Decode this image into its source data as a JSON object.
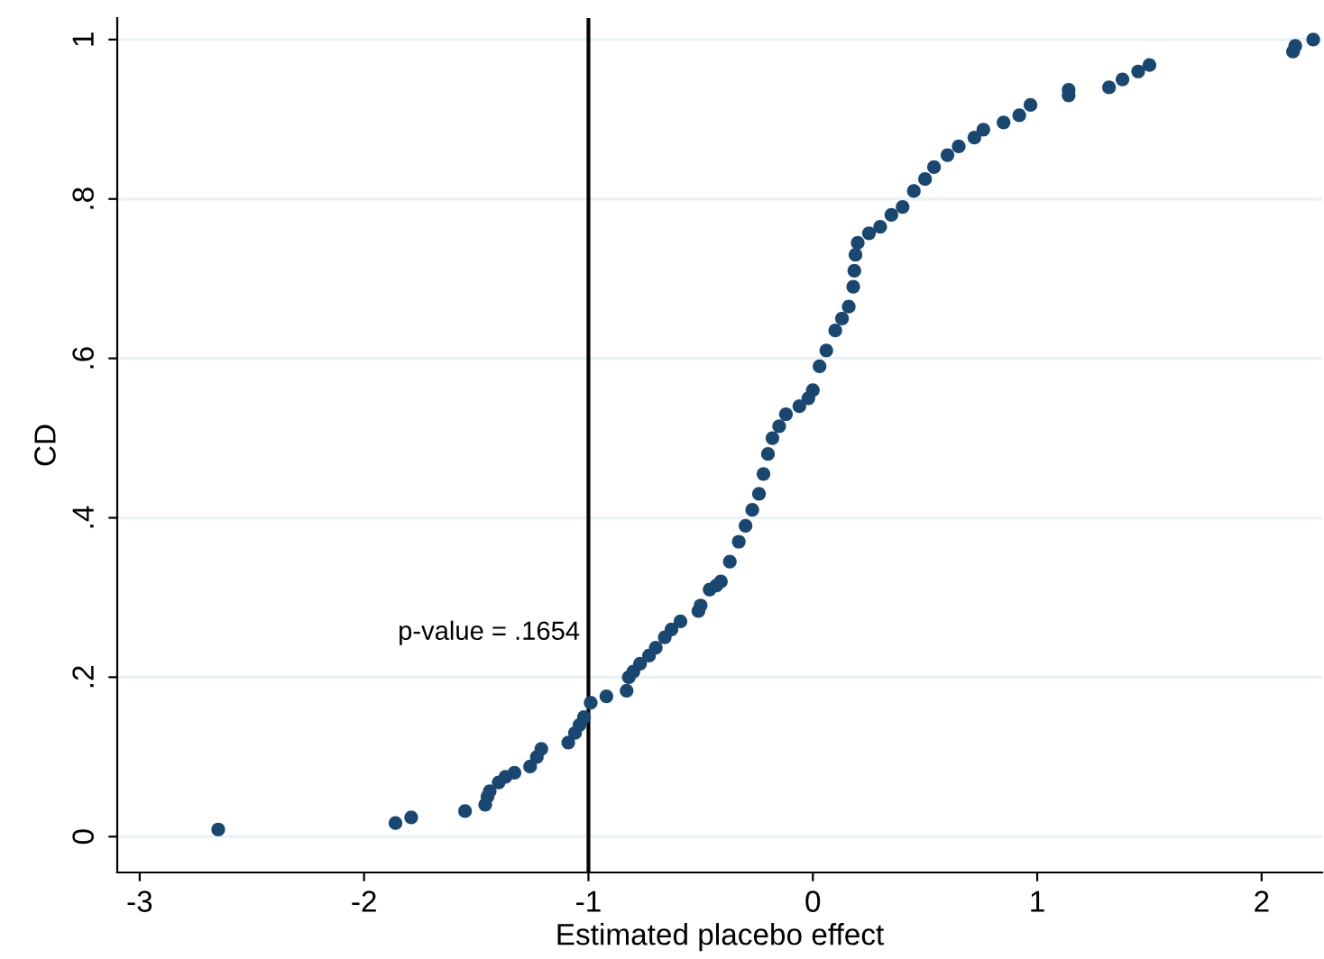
{
  "chart_data": {
    "type": "scatter",
    "xlabel": "Estimated placebo effect",
    "ylabel": "CD",
    "xlim": [
      -3.1,
      2.27
    ],
    "ylim": [
      -0.045,
      1.027
    ],
    "xticks": [
      -3,
      -2,
      -1,
      0,
      1,
      2
    ],
    "yticks": [
      {
        "value": 0,
        "label": "0"
      },
      {
        "value": 0.2,
        "label": ".2"
      },
      {
        "value": 0.4,
        "label": ".4"
      },
      {
        "value": 0.6,
        "label": ".6"
      },
      {
        "value": 0.8,
        "label": ".8"
      },
      {
        "value": 1,
        "label": "1"
      }
    ],
    "grid": "y",
    "marker": "circle",
    "ref_lines": [
      {
        "axis": "x",
        "value": -1,
        "color": "#000000"
      }
    ],
    "annotations": [
      "p-value = .1654"
    ],
    "series": [
      {
        "color": "#1a476f",
        "x": [
          -2.65,
          -1.86,
          -1.79,
          -1.55,
          -1.46,
          -1.45,
          -1.44,
          -1.4,
          -1.37,
          -1.33,
          -1.26,
          -1.23,
          -1.21,
          -1.09,
          -1.06,
          -1.04,
          -1.02,
          -0.99,
          -0.92,
          -0.83,
          -0.82,
          -0.8,
          -0.77,
          -0.73,
          -0.7,
          -0.66,
          -0.63,
          -0.59,
          -0.51,
          -0.5,
          -0.46,
          -0.43,
          -0.41,
          -0.37,
          -0.33,
          -0.3,
          -0.27,
          -0.24,
          -0.22,
          -0.2,
          -0.18,
          -0.15,
          -0.12,
          -0.06,
          -0.02,
          0.0,
          0.03,
          0.06,
          0.1,
          0.13,
          0.16,
          0.18,
          0.185,
          0.19,
          0.2,
          0.25,
          0.3,
          0.35,
          0.4,
          0.45,
          0.5,
          0.54,
          0.6,
          0.65,
          0.72,
          0.76,
          0.85,
          0.92,
          0.97,
          1.14,
          1.14,
          1.32,
          1.38,
          1.45,
          1.5,
          2.14,
          2.15,
          2.23
        ],
        "values": [
          0.009,
          0.017,
          0.024,
          0.032,
          0.04,
          0.05,
          0.057,
          0.068,
          0.075,
          0.08,
          0.088,
          0.1,
          0.11,
          0.118,
          0.13,
          0.14,
          0.15,
          0.168,
          0.176,
          0.183,
          0.2,
          0.207,
          0.217,
          0.227,
          0.237,
          0.25,
          0.26,
          0.27,
          0.283,
          0.29,
          0.31,
          0.315,
          0.32,
          0.345,
          0.37,
          0.39,
          0.41,
          0.43,
          0.455,
          0.48,
          0.5,
          0.515,
          0.53,
          0.54,
          0.55,
          0.56,
          0.59,
          0.61,
          0.635,
          0.65,
          0.665,
          0.69,
          0.71,
          0.73,
          0.745,
          0.757,
          0.765,
          0.78,
          0.79,
          0.81,
          0.825,
          0.84,
          0.855,
          0.866,
          0.877,
          0.887,
          0.896,
          0.905,
          0.918,
          0.93,
          0.937,
          0.94,
          0.95,
          0.96,
          0.968,
          0.985,
          0.992,
          1.0
        ]
      }
    ]
  }
}
